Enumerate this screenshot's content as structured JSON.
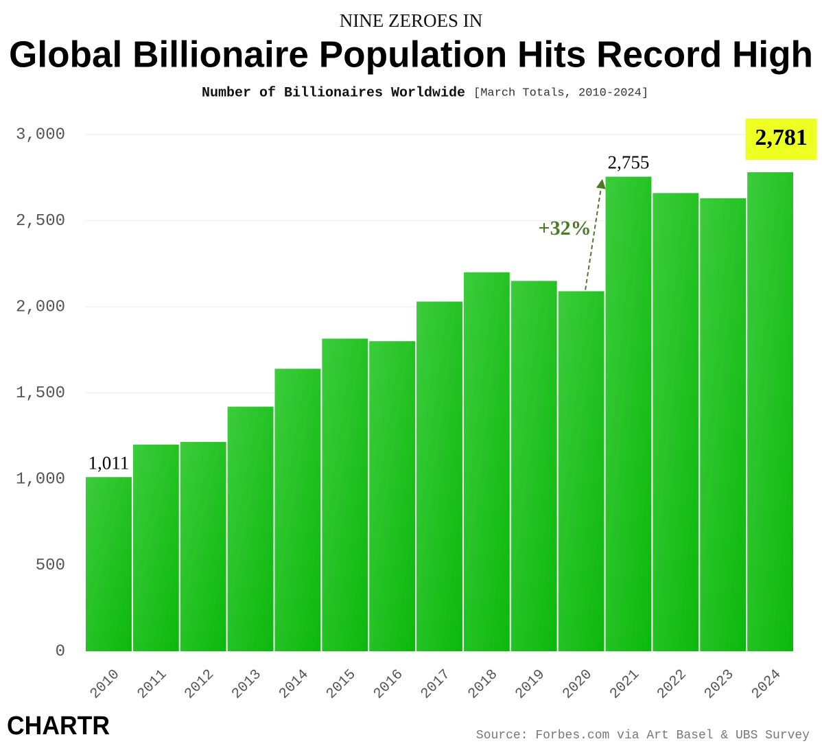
{
  "chart_data": {
    "type": "bar",
    "kicker": "NINE ZEROES IN",
    "title": "Global Billionaire Population Hits Record High",
    "subtitle": "Number of Billionaires Worldwide",
    "subtitle_note": "[March Totals, 2010-2024]",
    "categories": [
      "2010",
      "2011",
      "2012",
      "2013",
      "2014",
      "2015",
      "2016",
      "2017",
      "2018",
      "2019",
      "2020",
      "2021",
      "2022",
      "2023",
      "2024"
    ],
    "values": [
      1011,
      1200,
      1215,
      1420,
      1640,
      1815,
      1800,
      2030,
      2200,
      2150,
      2090,
      2755,
      2660,
      2630,
      2781
    ],
    "value_labels": [
      "1,011",
      null,
      null,
      null,
      null,
      null,
      null,
      null,
      null,
      null,
      null,
      "2,755",
      null,
      null,
      "2,781"
    ],
    "color": "#22c022",
    "highlight_color": "#eeff22",
    "annotation": "+32%",
    "annotation_color": "#4a7a2a",
    "ylim": [
      0,
      3000
    ],
    "yticks": [
      0,
      500,
      {
        "value": 1000,
        "label": "1,000"
      },
      {
        "value": 1500,
        "label": "1,500"
      },
      {
        "value": 2000,
        "label": "2,000"
      },
      {
        "value": 2500,
        "label": "2,500"
      },
      {
        "value": 3000,
        "label": "3,000"
      }
    ],
    "grid": true,
    "source": "Source: Forbes.com via Art Basel & UBS Survey",
    "brand": "CHARTR"
  }
}
